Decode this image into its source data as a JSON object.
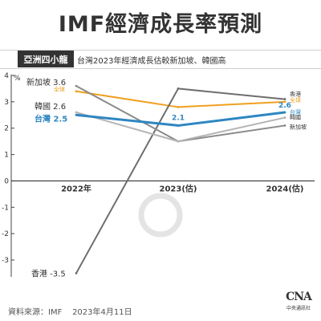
{
  "title": "IMF經濟成長率預測",
  "tag": "亞洲四小龍",
  "subtitle": "台灣2023年經濟成長估較新加坡、韓國高",
  "footer": {
    "source": "資料來源：IMF",
    "date": "2023年4月11日"
  },
  "logo": {
    "mark": "CNA",
    "text": "中央通訊社"
  },
  "chart_data": {
    "type": "line",
    "unit": "%",
    "categories": [
      "2022年",
      "2023(估)",
      "2024(估)"
    ],
    "y_ticks": [
      4,
      3,
      2,
      1,
      0,
      -1,
      -2,
      -3
    ],
    "ylim": [
      -3.5,
      4
    ],
    "grid": false,
    "series": [
      {
        "name": "全球",
        "values": [
          3.4,
          2.8,
          3.0
        ],
        "color": "#f0a020"
      },
      {
        "name": "香港",
        "values": [
          -3.5,
          3.5,
          3.1
        ],
        "color": "#6e6e6e"
      },
      {
        "name": "新加坡",
        "values": [
          3.6,
          1.5,
          2.1
        ],
        "color": "#8a8a8a"
      },
      {
        "name": "韓國",
        "values": [
          2.6,
          1.5,
          2.4
        ],
        "color": "#b4b4b4"
      },
      {
        "name": "台灣",
        "values": [
          2.5,
          2.1,
          2.6
        ],
        "color": "#2e86c1"
      }
    ],
    "labels": [
      {
        "series": 2,
        "point": 0,
        "text": "新加坡 3.6"
      },
      {
        "series": 0,
        "point": 0,
        "text": "全球"
      },
      {
        "series": 3,
        "point": 0,
        "text": "韓國 2.6"
      },
      {
        "series": 4,
        "point": 0,
        "text": "台灣 2.5"
      },
      {
        "series": 1,
        "point": 0,
        "text": "香港 -3.5"
      },
      {
        "series": 4,
        "point": 1,
        "text": "2.1"
      },
      {
        "series": 4,
        "point": 2,
        "text": "2.6"
      },
      {
        "series": 1,
        "point": 2,
        "text": "香港"
      },
      {
        "series": 0,
        "point": 2,
        "text": "全球"
      },
      {
        "series": 4,
        "point": 2,
        "text": "台灣"
      },
      {
        "series": 3,
        "point": 2,
        "text": "韓國"
      },
      {
        "series": 2,
        "point": 2,
        "text": "新加坡"
      }
    ]
  }
}
